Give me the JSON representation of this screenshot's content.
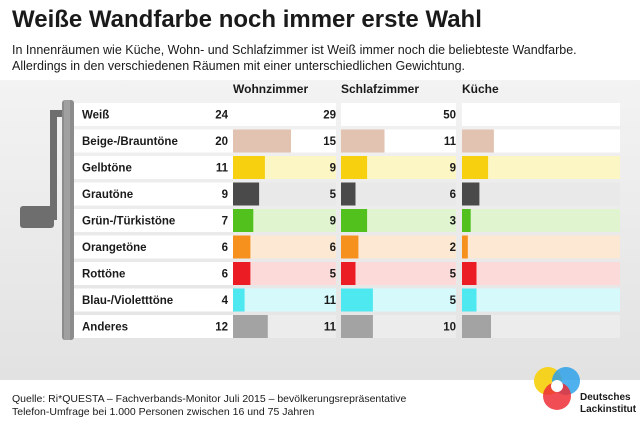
{
  "title": "Weiße Wandfarbe noch immer erste Wahl",
  "subtitle": "In Innenräumen wie Küche, Wohn- und Schlafzimmer ist Weiß immer noch die beliebteste Wandfarbe. Allerdings in den verschiedenen Räumen mit einer unterschiedlichen Gewichtung.",
  "footer": {
    "line1": "Quelle: Ri*QUESTA – Fachverbands-Monitor Juli 2015 – bevölkerungsrepräsentative",
    "line2": "Telefon-Umfrage bei 1.000 Personen zwischen 16 und 75 Jahren"
  },
  "logo": {
    "line1": "Deutsches",
    "line2": "Lackinstitut"
  },
  "colors": {
    "Weiß": {
      "bar": "#ffffff",
      "row": "#ffffff"
    },
    "Beige-/Brauntöne": {
      "bar": "#e2c2b0",
      "row": "#ffffff"
    },
    "Gelbtöne": {
      "bar": "#f7d010",
      "row": "#fcf5c4"
    },
    "Grautöne": {
      "bar": "#4a4a4a",
      "row": "#e9e9e9"
    },
    "Grün-/Türkistöne": {
      "bar": "#52c11e",
      "row": "#e0f4d0"
    },
    "Orangetöne": {
      "bar": "#f6911e",
      "row": "#fde8d4"
    },
    "Rottöne": {
      "bar": "#ec1c24",
      "row": "#fcdada"
    },
    "Blau-/Violetttöne": {
      "bar": "#4ee8f0",
      "row": "#d6fafc"
    },
    "Anderes": {
      "bar": "#a3a3a3",
      "row": "#ececec"
    }
  },
  "chart_data": {
    "type": "bar",
    "categories": [
      "Weiß",
      "Beige-/Brauntöne",
      "Gelbtöne",
      "Grautöne",
      "Grün-/Türkistöne",
      "Orangetöne",
      "Rottöne",
      "Blau-/Violetttöne",
      "Anderes"
    ],
    "series": [
      {
        "name": "Wohnzimmer",
        "values": [
          24,
          20,
          11,
          9,
          7,
          6,
          6,
          4,
          12
        ]
      },
      {
        "name": "Schlafzimmer",
        "values": [
          29,
          15,
          9,
          5,
          9,
          6,
          5,
          11,
          11
        ]
      },
      {
        "name": "Küche",
        "values": [
          50,
          11,
          9,
          6,
          3,
          2,
          5,
          5,
          10
        ]
      }
    ],
    "title": "Weiße Wandfarbe noch immer erste Wahl",
    "xlabel": "",
    "ylabel": "",
    "legend": "top",
    "grid": false
  }
}
